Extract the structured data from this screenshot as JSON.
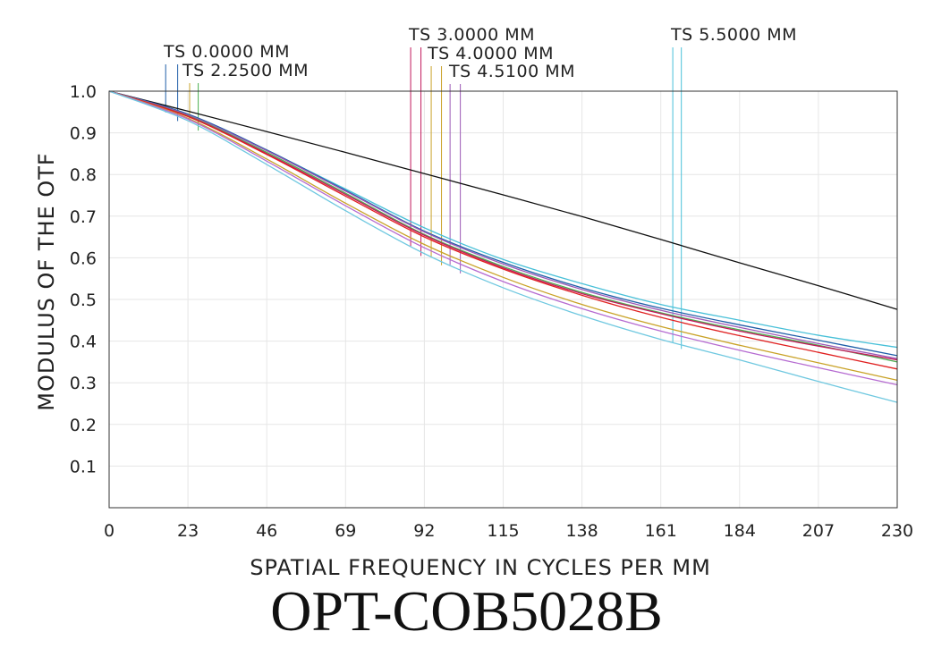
{
  "chart_data": {
    "type": "line",
    "title": "OPT-COB5028B",
    "xlabel": "SPATIAL FREQUENCY IN CYCLES PER MM",
    "ylabel": "MODULUS OF THE OTF",
    "xlim": [
      0,
      230
    ],
    "ylim": [
      0,
      1.0
    ],
    "xticks": [
      "0",
      "23",
      "46",
      "69",
      "92",
      "115",
      "138",
      "161",
      "184",
      "207",
      "230"
    ],
    "yticks": [
      "0.1",
      "0.2",
      "0.3",
      "0.4",
      "0.5",
      "0.6",
      "0.7",
      "0.8",
      "0.9",
      "1.0"
    ],
    "grid": true,
    "field_labels": [
      {
        "text": "TS 0.0000 MM",
        "markers": [
          {
            "x": 16.5,
            "color": "#1f5fa8"
          },
          {
            "x": 20,
            "color": "#1f5fa8"
          }
        ]
      },
      {
        "text": "TS 2.2500 MM",
        "markers": [
          {
            "x": 23.5,
            "color": "#c9a227"
          },
          {
            "x": 26,
            "color": "#4caf50"
          }
        ]
      },
      {
        "text": "TS 3.0000 MM",
        "markers": [
          {
            "x": 88,
            "color": "#c2185b"
          },
          {
            "x": 91,
            "color": "#c2185b"
          }
        ]
      },
      {
        "text": "TS 4.0000 MM",
        "markers": [
          {
            "x": 94,
            "color": "#c9a227"
          },
          {
            "x": 97,
            "color": "#c9a227"
          }
        ]
      },
      {
        "text": "TS 4.5100 MM",
        "markers": [
          {
            "x": 99.5,
            "color": "#9b59b6"
          },
          {
            "x": 102.5,
            "color": "#9b59b6"
          }
        ]
      },
      {
        "text": "TS 5.5000 MM",
        "markers": [
          {
            "x": 164.5,
            "color": "#48c0d8"
          },
          {
            "x": 167,
            "color": "#48c0d8"
          }
        ]
      }
    ],
    "series": [
      {
        "color": "#111111",
        "x": [
          0,
          23,
          46,
          69,
          92,
          115,
          138,
          161,
          184,
          207,
          230
        ],
        "y": [
          1.0,
          0.952,
          0.903,
          0.853,
          0.802,
          0.751,
          0.699,
          0.644,
          0.588,
          0.533,
          0.476
        ]
      },
      {
        "color": "#48c0d8",
        "x": [
          0,
          23,
          46,
          69,
          92,
          115,
          138,
          161,
          184,
          207,
          230
        ],
        "y": [
          1.0,
          0.944,
          0.858,
          0.765,
          0.672,
          0.596,
          0.538,
          0.488,
          0.45,
          0.414,
          0.385
        ]
      },
      {
        "color": "#1f5fa8",
        "x": [
          0,
          23,
          46,
          69,
          92,
          115,
          138,
          161,
          184,
          207,
          230
        ],
        "y": [
          1.0,
          0.945,
          0.859,
          0.762,
          0.664,
          0.589,
          0.528,
          0.479,
          0.439,
          0.402,
          0.365
        ]
      },
      {
        "color": "#9b59b6",
        "x": [
          0,
          23,
          46,
          69,
          92,
          115,
          138,
          161,
          184,
          207,
          230
        ],
        "y": [
          1.0,
          0.943,
          0.857,
          0.76,
          0.662,
          0.585,
          0.524,
          0.474,
          0.433,
          0.394,
          0.358
        ]
      },
      {
        "color": "#4caf50",
        "x": [
          0,
          23,
          46,
          69,
          92,
          115,
          138,
          161,
          184,
          207,
          230
        ],
        "y": [
          1.0,
          0.941,
          0.853,
          0.755,
          0.656,
          0.579,
          0.517,
          0.468,
          0.427,
          0.39,
          0.35
        ]
      },
      {
        "color": "#c2185b",
        "x": [
          0,
          23,
          46,
          69,
          92,
          115,
          138,
          161,
          184,
          207,
          230
        ],
        "y": [
          1.0,
          0.94,
          0.85,
          0.752,
          0.654,
          0.576,
          0.514,
          0.466,
          0.424,
          0.388,
          0.355
        ]
      },
      {
        "color": "#e02020",
        "x": [
          0,
          23,
          46,
          69,
          92,
          115,
          138,
          161,
          184,
          207,
          230
        ],
        "y": [
          1.0,
          0.939,
          0.848,
          0.748,
          0.65,
          0.573,
          0.51,
          0.457,
          0.413,
          0.373,
          0.333
        ]
      },
      {
        "color": "#c9a227",
        "x": [
          0,
          23,
          46,
          69,
          92,
          115,
          138,
          161,
          184,
          207,
          230
        ],
        "y": [
          1.0,
          0.935,
          0.837,
          0.731,
          0.632,
          0.553,
          0.488,
          0.435,
          0.39,
          0.348,
          0.306
        ]
      },
      {
        "color": "#b56bd1",
        "x": [
          0,
          23,
          46,
          69,
          92,
          115,
          138,
          161,
          184,
          207,
          230
        ],
        "y": [
          1.0,
          0.933,
          0.832,
          0.725,
          0.624,
          0.543,
          0.478,
          0.424,
          0.378,
          0.336,
          0.295
        ]
      },
      {
        "color": "#6fc8e0",
        "x": [
          0,
          23,
          46,
          69,
          92,
          115,
          138,
          161,
          184,
          207,
          230
        ],
        "y": [
          1.0,
          0.929,
          0.824,
          0.713,
          0.61,
          0.528,
          0.461,
          0.404,
          0.355,
          0.303,
          0.253
        ]
      }
    ]
  }
}
